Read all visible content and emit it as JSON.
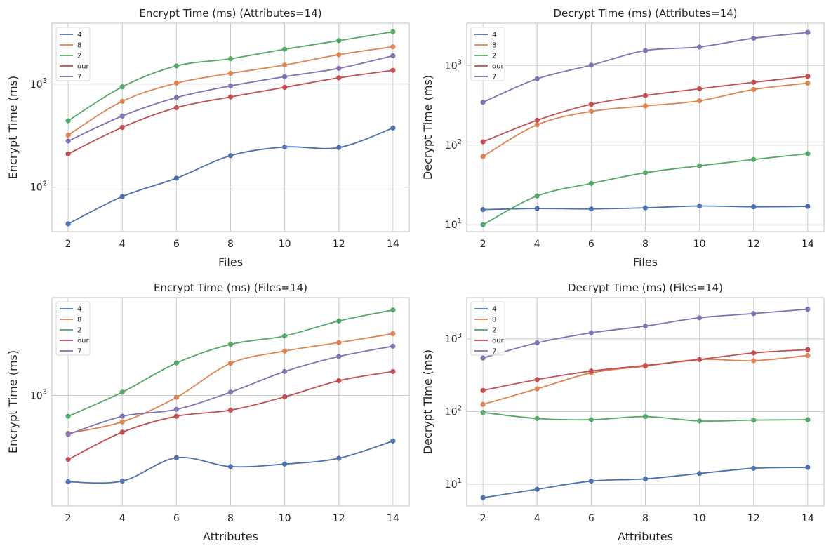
{
  "colors": {
    "4": "#4c72b0",
    "8": "#dd8452",
    "2": "#55a868",
    "our": "#c44e52",
    "7": "#8172b3",
    "grid": "#cccccc",
    "frame": "#cccccc",
    "background": "#ffffff"
  },
  "chart_data": [
    {
      "type": "line",
      "title": "Encrypt Time (ms) (Attributes=14)",
      "xlabel": "Files",
      "ylabel": "Encrypt Time (ms)",
      "yscale": "log",
      "x": [
        2,
        4,
        6,
        8,
        10,
        12,
        14
      ],
      "xticks": [
        "2",
        "4",
        "6",
        "8",
        "10",
        "12",
        "14"
      ],
      "yticks": [
        {
          "value": 100,
          "base": "10",
          "exp": "2"
        },
        {
          "value": 1000,
          "base": "10",
          "exp": "3"
        }
      ],
      "xlim": [
        1.4,
        14.6
      ],
      "ylim": [
        37,
        3900
      ],
      "legend": "top-left",
      "series": [
        {
          "name": "4",
          "color": "#4c72b0",
          "values": [
            44,
            81,
            122,
            202,
            245,
            242,
            375
          ]
        },
        {
          "name": "8",
          "color": "#dd8452",
          "values": [
            320,
            680,
            1020,
            1270,
            1530,
            1930,
            2300
          ]
        },
        {
          "name": "2",
          "color": "#55a868",
          "values": [
            440,
            940,
            1500,
            1760,
            2180,
            2640,
            3220
          ]
        },
        {
          "name": "our",
          "color": "#c44e52",
          "values": [
            210,
            380,
            590,
            750,
            930,
            1150,
            1360
          ]
        },
        {
          "name": "7",
          "color": "#8172b3",
          "values": [
            280,
            490,
            740,
            960,
            1180,
            1420,
            1880
          ]
        }
      ]
    },
    {
      "type": "line",
      "title": "Decrypt Time (ms) (Attributes=14)",
      "xlabel": "Files",
      "ylabel": "Decrypt Time (ms)",
      "yscale": "log",
      "x": [
        2,
        4,
        6,
        8,
        10,
        12,
        14
      ],
      "xticks": [
        "2",
        "4",
        "6",
        "8",
        "10",
        "12",
        "14"
      ],
      "yticks": [
        {
          "value": 10,
          "base": "10",
          "exp": "1"
        },
        {
          "value": 100,
          "base": "10",
          "exp": "2"
        },
        {
          "value": 1000,
          "base": "10",
          "exp": "3"
        }
      ],
      "xlim": [
        1.4,
        14.6
      ],
      "ylim": [
        8.2,
        3400
      ],
      "legend": "top-left",
      "series": [
        {
          "name": "4",
          "color": "#4c72b0",
          "values": [
            15.5,
            16,
            15.8,
            16.3,
            17.2,
            16.8,
            17
          ]
        },
        {
          "name": "8",
          "color": "#dd8452",
          "values": [
            72,
            180,
            265,
            310,
            360,
            500,
            600
          ]
        },
        {
          "name": "2",
          "color": "#55a868",
          "values": [
            10,
            23,
            33,
            45,
            55,
            66,
            78
          ]
        },
        {
          "name": "our",
          "color": "#c44e52",
          "values": [
            110,
            205,
            325,
            420,
            510,
            615,
            730
          ]
        },
        {
          "name": "7",
          "color": "#8172b3",
          "values": [
            345,
            680,
            1010,
            1540,
            1710,
            2200,
            2600
          ]
        }
      ]
    },
    {
      "type": "line",
      "title": "Encrypt Time (ms) (Files=14)",
      "xlabel": "Attributes",
      "ylabel": "Encrypt Time (ms)",
      "yscale": "log",
      "x": [
        2,
        4,
        6,
        8,
        10,
        12,
        14
      ],
      "xticks": [
        "2",
        "4",
        "6",
        "8",
        "10",
        "12",
        "14"
      ],
      "yticks": [
        {
          "value": 1000,
          "base": "10",
          "exp": "3"
        }
      ],
      "xlim": [
        1.4,
        14.6
      ],
      "ylim": [
        140,
        5700
      ],
      "legend": "top-left",
      "series": [
        {
          "name": "4",
          "color": "#4c72b0",
          "values": [
            215,
            218,
            330,
            282,
            295,
            327,
            445
          ]
        },
        {
          "name": "8",
          "color": "#dd8452",
          "values": [
            510,
            625,
            965,
            1770,
            2200,
            2560,
            3000
          ]
        },
        {
          "name": "2",
          "color": "#55a868",
          "values": [
            690,
            1060,
            1780,
            2480,
            2880,
            3760,
            4570
          ]
        },
        {
          "name": "our",
          "color": "#c44e52",
          "values": [
            320,
            520,
            690,
            770,
            975,
            1300,
            1530
          ]
        },
        {
          "name": "7",
          "color": "#8172b3",
          "values": [
            500,
            690,
            780,
            1060,
            1530,
            2000,
            2400
          ]
        }
      ]
    },
    {
      "type": "line",
      "title": "Decrypt Time (ms) (Files=14)",
      "xlabel": "Attributes",
      "ylabel": "Decrypt Time (ms)",
      "yscale": "log",
      "x": [
        2,
        4,
        6,
        8,
        10,
        12,
        14
      ],
      "xticks": [
        "2",
        "4",
        "6",
        "8",
        "10",
        "12",
        "14"
      ],
      "yticks": [
        {
          "value": 10,
          "base": "10",
          "exp": "1"
        },
        {
          "value": 100,
          "base": "10",
          "exp": "2"
        },
        {
          "value": 1000,
          "base": "10",
          "exp": "3"
        }
      ],
      "xlim": [
        1.4,
        14.6
      ],
      "ylim": [
        5,
        3700
      ],
      "legend": "top-left",
      "series": [
        {
          "name": "4",
          "color": "#4c72b0",
          "values": [
            6.5,
            8.5,
            11,
            11.8,
            14,
            16.5,
            17
          ]
        },
        {
          "name": "8",
          "color": "#dd8452",
          "values": [
            125,
            205,
            340,
            420,
            520,
            500,
            590
          ]
        },
        {
          "name": "2",
          "color": "#55a868",
          "values": [
            97,
            80,
            77,
            85,
            74,
            76,
            77
          ]
        },
        {
          "name": "our",
          "color": "#c44e52",
          "values": [
            195,
            275,
            360,
            430,
            520,
            640,
            710
          ]
        },
        {
          "name": "7",
          "color": "#8172b3",
          "values": [
            545,
            880,
            1210,
            1500,
            1950,
            2230,
            2560
          ]
        }
      ]
    }
  ]
}
